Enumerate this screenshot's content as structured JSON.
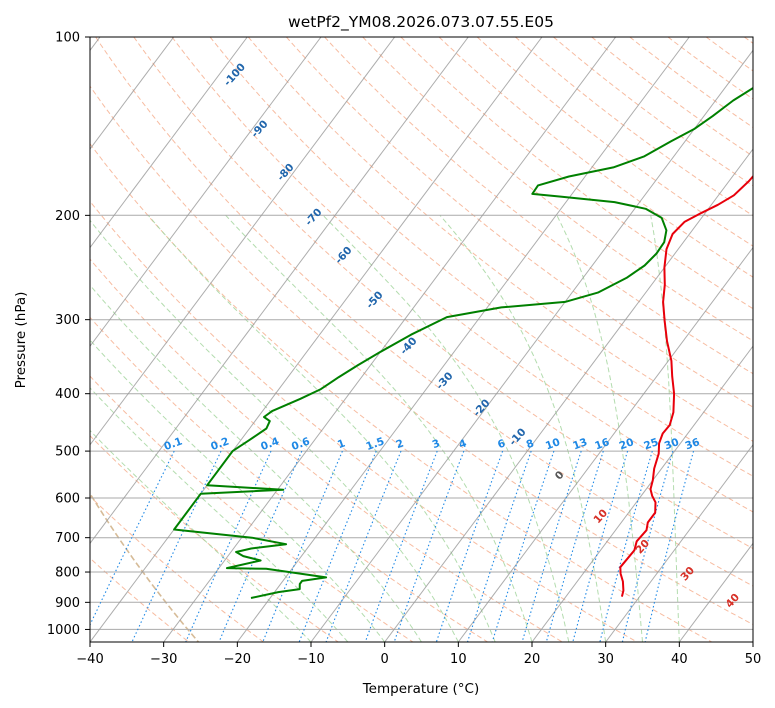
{
  "chart_data": {
    "type": "line",
    "title": "wetPf2_YM08.2026.073.07.55.E05",
    "xlabel": "Temperature (°C)",
    "ylabel": "Pressure (hPa)",
    "xlim": [
      -40,
      50
    ],
    "ylim": [
      1050,
      100
    ],
    "y_scale": "log",
    "x_ticks": [
      -40,
      -30,
      -20,
      -10,
      0,
      10,
      20,
      30,
      40,
      50
    ],
    "x_tick_labels": [
      "−40",
      "−30",
      "−20",
      "−10",
      "0",
      "10",
      "20",
      "30",
      "40",
      "50"
    ],
    "y_ticks": [
      100,
      200,
      300,
      400,
      500,
      600,
      700,
      800,
      900,
      1000
    ],
    "y_tick_labels": [
      "100",
      "200",
      "300",
      "400",
      "500",
      "600",
      "700",
      "800",
      "900",
      "1000"
    ],
    "grid": true,
    "series": [
      {
        "kind": "temperature",
        "color": "#e8000b",
        "points": [
          [
            27.6,
            880
          ],
          [
            27.2,
            860
          ],
          [
            26.2,
            830
          ],
          [
            25.1,
            805
          ],
          [
            24.4,
            785
          ],
          [
            24.5,
            760
          ],
          [
            24.6,
            735
          ],
          [
            24.0,
            710
          ],
          [
            24.2,
            680
          ],
          [
            23.6,
            660
          ],
          [
            23.6,
            635
          ],
          [
            22.6,
            610
          ],
          [
            21.5,
            595
          ],
          [
            20.6,
            580
          ],
          [
            20.0,
            560
          ],
          [
            19.0,
            535
          ],
          [
            18.1,
            505
          ],
          [
            17.1,
            485
          ],
          [
            16.6,
            467
          ],
          [
            16.7,
            452
          ],
          [
            15.9,
            430
          ],
          [
            14.1,
            400
          ],
          [
            12.1,
            374
          ],
          [
            10.4,
            352
          ],
          [
            7.8,
            326
          ],
          [
            5.4,
            301
          ],
          [
            3.3,
            280
          ],
          [
            1.8,
            262
          ],
          [
            0.0,
            245
          ],
          [
            -1.6,
            228
          ],
          [
            -2.3,
            215
          ],
          [
            -1.9,
            205
          ],
          [
            -0.5,
            198
          ],
          [
            0.9,
            192
          ],
          [
            2.1,
            185
          ],
          [
            2.7,
            175
          ],
          [
            3.0,
            163
          ],
          [
            3.3,
            150
          ],
          [
            3.8,
            142
          ],
          [
            5.1,
            135
          ],
          [
            6.4,
            128
          ],
          [
            8.4,
            122
          ],
          [
            9.8,
            116
          ],
          [
            10.7,
            110
          ],
          [
            11.0,
            104
          ],
          [
            11.3,
            100
          ]
        ]
      },
      {
        "kind": "dewpoint",
        "color": "#008000",
        "points": [
          [
            -22.6,
            885
          ],
          [
            -19.5,
            865
          ],
          [
            -16.9,
            855
          ],
          [
            -17.4,
            838
          ],
          [
            -17.4,
            828
          ],
          [
            -14.5,
            817
          ],
          [
            -23.5,
            790
          ],
          [
            -28.9,
            788
          ],
          [
            -25.1,
            765
          ],
          [
            -27.9,
            752
          ],
          [
            -29.3,
            740
          ],
          [
            -27.6,
            730
          ],
          [
            -23.3,
            718
          ],
          [
            -28.6,
            700
          ],
          [
            -40.0,
            678
          ],
          [
            -40.0,
            590
          ],
          [
            -29.2,
            581
          ],
          [
            -40.0,
            571
          ],
          [
            -40.0,
            500
          ],
          [
            -38.9,
            480
          ],
          [
            -37.7,
            458
          ],
          [
            -38.0,
            445
          ],
          [
            -39.2,
            438
          ],
          [
            -38.7,
            428
          ],
          [
            -36.1,
            408
          ],
          [
            -34.3,
            393
          ],
          [
            -33.1,
            375
          ],
          [
            -31.7,
            358
          ],
          [
            -30.0,
            340
          ],
          [
            -27.6,
            318
          ],
          [
            -24.5,
            297
          ],
          [
            -18.1,
            286
          ],
          [
            -10.0,
            280
          ],
          [
            -6.5,
            270
          ],
          [
            -4.1,
            255
          ],
          [
            -2.9,
            243
          ],
          [
            -2.5,
            232
          ],
          [
            -2.6,
            222
          ],
          [
            -3.5,
            212
          ],
          [
            -5.4,
            202
          ],
          [
            -8.5,
            195
          ],
          [
            -13.4,
            190
          ],
          [
            -21.1,
            186
          ],
          [
            -25.4,
            184
          ],
          [
            -25.5,
            178
          ],
          [
            -22.2,
            172
          ],
          [
            -17.1,
            166
          ],
          [
            -14.0,
            159
          ],
          [
            -11.9,
            150
          ],
          [
            -10.0,
            143
          ],
          [
            -8.8,
            136
          ],
          [
            -7.6,
            128
          ],
          [
            -5.7,
            120
          ],
          [
            -3.4,
            112
          ],
          [
            -0.4,
            104
          ],
          [
            1.3,
            100
          ]
        ]
      }
    ],
    "dry_adiabat_labels": [
      "-100",
      "-90",
      "-80",
      "-70",
      "-60",
      "-50",
      "-40",
      "-30",
      "-20",
      "-10",
      "0",
      "10",
      "20",
      "30",
      "40"
    ],
    "mixing_ratio_labels": [
      "0.1",
      "0.2",
      "0.4",
      "0.6",
      "1",
      "1.5",
      "2",
      "3",
      "4",
      "6",
      "8",
      "10",
      "13",
      "16",
      "20",
      "25",
      "30",
      "36"
    ],
    "mixing_ratio_values": [
      0.1,
      0.2,
      0.4,
      0.6,
      1,
      1.5,
      2,
      3,
      4,
      6,
      8,
      10,
      13,
      16,
      20,
      25,
      30,
      36
    ],
    "colors": {
      "dry_adiabat": "#f4a582",
      "moist_adiabat": "#a6d6a0",
      "mixing_ratio": "#1e88e5",
      "isotherm": "#999999",
      "isobar": "#aaaaaa",
      "dry_label": "#2166ac",
      "warm_label": "#d73027",
      "zero_label": "#555555",
      "outer_curve": "#d2b48c"
    }
  }
}
